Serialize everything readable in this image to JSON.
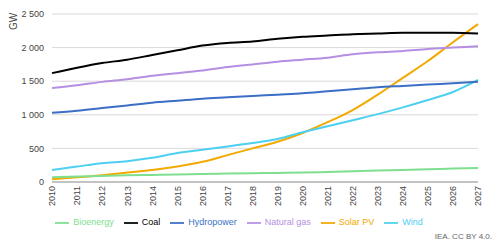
{
  "chart_data": {
    "type": "line",
    "y_label": "GW",
    "source": "IEA. CC BY 4.0.",
    "categories": [
      "2010",
      "2011",
      "2012",
      "2013",
      "2014",
      "2015",
      "2016",
      "2017",
      "2018",
      "2019",
      "2020",
      "2021",
      "2022",
      "2023",
      "2024",
      "2025",
      "2026",
      "2027"
    ],
    "series": [
      {
        "name": "Solar PV",
        "color": "#f2a900",
        "values": [
          40,
          70,
          100,
          140,
          180,
          230,
          300,
          400,
          500,
          600,
          730,
          890,
          1070,
          1300,
          1550,
          1800,
          2080,
          2350
        ]
      },
      {
        "name": "Wind",
        "color": "#4dd0f0",
        "values": [
          180,
          230,
          280,
          310,
          360,
          430,
          480,
          530,
          580,
          640,
          740,
          830,
          920,
          1010,
          1110,
          1220,
          1340,
          1520
        ]
      },
      {
        "name": "Hydropower",
        "color": "#3b6fc6",
        "values": [
          1030,
          1060,
          1100,
          1140,
          1180,
          1210,
          1240,
          1260,
          1280,
          1300,
          1320,
          1350,
          1380,
          1410,
          1430,
          1450,
          1470,
          1490
        ]
      },
      {
        "name": "Bioenergy",
        "color": "#7ee08f",
        "values": [
          70,
          80,
          90,
          100,
          105,
          110,
          120,
          125,
          130,
          135,
          140,
          150,
          160,
          170,
          180,
          190,
          200,
          210
        ]
      },
      {
        "name": "Coal",
        "color": "#000000",
        "values": [
          1620,
          1700,
          1770,
          1820,
          1890,
          1960,
          2030,
          2070,
          2090,
          2130,
          2160,
          2180,
          2200,
          2210,
          2220,
          2220,
          2220,
          2210
        ]
      },
      {
        "name": "Natural gas",
        "color": "#b48fe2",
        "values": [
          1400,
          1440,
          1490,
          1530,
          1580,
          1620,
          1660,
          1710,
          1750,
          1790,
          1820,
          1850,
          1900,
          1930,
          1950,
          1980,
          2000,
          2020
        ]
      }
    ],
    "ylim": [
      0,
      2500
    ],
    "yticks": [
      0,
      500,
      {
        "value": 1000,
        "label": "1 000"
      },
      {
        "value": 1500,
        "label": "1 500"
      },
      {
        "value": 2000,
        "label": "2 000"
      },
      {
        "value": 2500,
        "label": "2 500"
      }
    ],
    "grid": true,
    "legend": "bottom"
  }
}
